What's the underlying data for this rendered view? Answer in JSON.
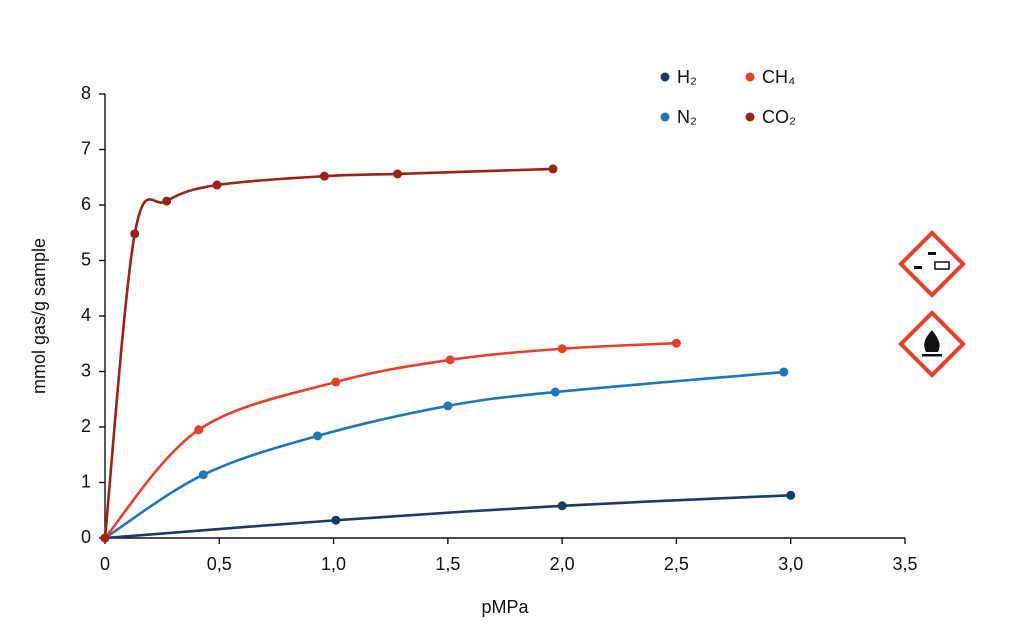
{
  "chart_data": {
    "type": "line",
    "x_label": "pMPa",
    "y_label": "mmol gas/g sample",
    "xlim": [
      0,
      3.5
    ],
    "xticks": [
      0,
      {
        "value": 0.5,
        "label": "0,5"
      },
      {
        "value": 1,
        "label": "1,0"
      },
      {
        "value": 1.5,
        "label": "1,5"
      },
      {
        "value": 2,
        "label": "2,0"
      },
      {
        "value": 2.5,
        "label": "2,5"
      },
      {
        "value": 3,
        "label": "3,0"
      },
      {
        "value": 3.5,
        "label": "3,5"
      }
    ],
    "ylim": [
      0,
      8
    ],
    "yticks": [
      0,
      1,
      2,
      3,
      4,
      5,
      6,
      7,
      8
    ],
    "legend": "top-right",
    "series": [
      {
        "name": "H₂",
        "color": "#1d3a66",
        "x": [
          0,
          1.01,
          2.0,
          3.0
        ],
        "values": [
          0,
          0.32,
          0.58,
          0.77
        ]
      },
      {
        "name": "N₂",
        "color": "#1f77b8",
        "x": [
          0,
          0.43,
          0.93,
          1.5,
          1.97,
          2.97
        ],
        "values": [
          0,
          1.14,
          1.84,
          2.38,
          2.63,
          2.99
        ]
      },
      {
        "name": "CH₄",
        "color": "#e5402b",
        "x": [
          0,
          0.41,
          1.01,
          1.51,
          2.0,
          2.5
        ],
        "values": [
          0,
          1.95,
          2.81,
          3.21,
          3.41,
          3.51
        ]
      },
      {
        "name": "CO₂",
        "color": "#9a2318",
        "x": [
          0,
          0.13,
          0.27,
          0.49,
          0.96,
          1.28,
          1.96
        ],
        "values": [
          0,
          5.48,
          6.07,
          6.36,
          6.52,
          6.56,
          6.65
        ]
      }
    ]
  }
}
